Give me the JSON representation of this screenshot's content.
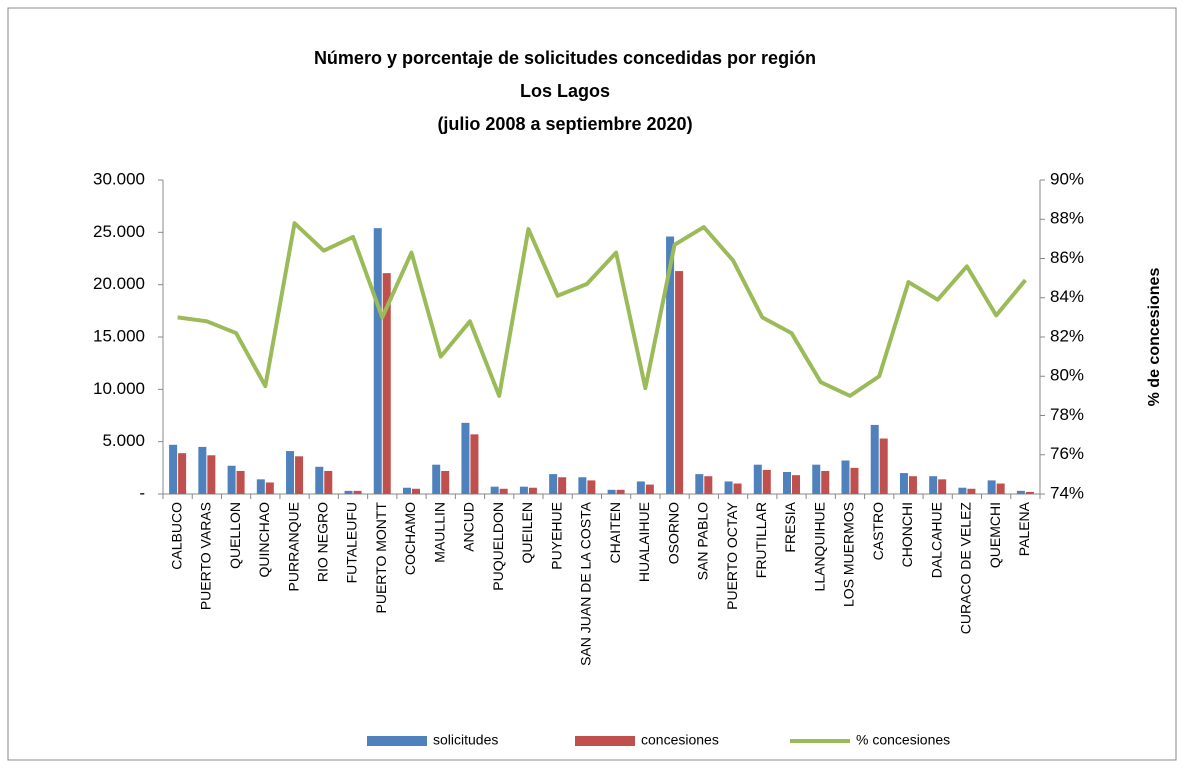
{
  "chart_data": {
    "type": "bar-line",
    "title": [
      "Número y porcentaje de solicitudes concedidas por región",
      "Los Lagos",
      "(julio 2008 a septiembre 2020)"
    ],
    "y2label": "% de concesiones",
    "categories": [
      "CALBUCO",
      "PUERTO VARAS",
      "QUELLON",
      "QUINCHAO",
      "PURRANQUE",
      "RIO NEGRO",
      "FUTALEUFU",
      "PUERTO MONTT",
      "COCHAMO",
      "MAULLIN",
      "ANCUD",
      "PUQUELDON",
      "QUEILEN",
      "PUYEHUE",
      "SAN JUAN DE LA COSTA",
      "CHAITEN",
      "HUALAIHUE",
      "OSORNO",
      "SAN PABLO",
      "PUERTO OCTAY",
      "FRUTILLAR",
      "FRESIA",
      "LLANQUIHUE",
      "LOS MUERMOS",
      "CASTRO",
      "CHONCHI",
      "DALCAHUE",
      "CURACO DE VELEZ",
      "QUEMCHI",
      "PALENA"
    ],
    "series": [
      {
        "name": "solicitudes",
        "color": "#4f81bd",
        "kind": "bar",
        "values": [
          4700,
          4500,
          2700,
          1400,
          4100,
          2600,
          300,
          25400,
          600,
          2800,
          6800,
          700,
          700,
          1900,
          1600,
          400,
          1200,
          24600,
          1900,
          1200,
          2800,
          2100,
          2800,
          3200,
          6600,
          2000,
          1700,
          600,
          1300,
          300
        ]
      },
      {
        "name": "concesiones",
        "color": "#c0504d",
        "kind": "bar",
        "values": [
          3900,
          3700,
          2200,
          1100,
          3600,
          2200,
          300,
          21100,
          500,
          2200,
          5700,
          500,
          600,
          1600,
          1300,
          400,
          900,
          21300,
          1700,
          1000,
          2300,
          1800,
          2200,
          2500,
          5300,
          1700,
          1400,
          500,
          1000,
          200
        ]
      },
      {
        "name": "% concesiones",
        "color": "#9bbb59",
        "kind": "line",
        "axis": "y2",
        "values": [
          83.0,
          82.8,
          82.2,
          79.5,
          87.8,
          86.4,
          87.1,
          83.0,
          86.3,
          81.0,
          82.8,
          79.0,
          87.5,
          84.1,
          84.7,
          86.3,
          79.4,
          86.7,
          87.6,
          85.9,
          83.0,
          82.2,
          79.7,
          79.0,
          80.0,
          84.8,
          83.9,
          85.6,
          83.1,
          84.9
        ]
      }
    ],
    "ylim": [
      0,
      30000
    ],
    "yticks": [
      {
        "value": 0,
        "label": "-"
      },
      {
        "value": 5000,
        "label": "5.000"
      },
      {
        "value": 10000,
        "label": "10.000"
      },
      {
        "value": 15000,
        "label": "15.000"
      },
      {
        "value": 20000,
        "label": "20.000"
      },
      {
        "value": 25000,
        "label": "25.000"
      },
      {
        "value": 30000,
        "label": "30.000"
      }
    ],
    "y2lim": [
      74,
      90
    ],
    "y2ticks": [
      {
        "value": 74,
        "label": "74%"
      },
      {
        "value": 76,
        "label": "76%"
      },
      {
        "value": 78,
        "label": "78%"
      },
      {
        "value": 80,
        "label": "80%"
      },
      {
        "value": 82,
        "label": "82%"
      },
      {
        "value": 84,
        "label": "84%"
      },
      {
        "value": 86,
        "label": "86%"
      },
      {
        "value": 88,
        "label": "88%"
      },
      {
        "value": 90,
        "label": "90%"
      }
    ],
    "legend": "bottom"
  }
}
